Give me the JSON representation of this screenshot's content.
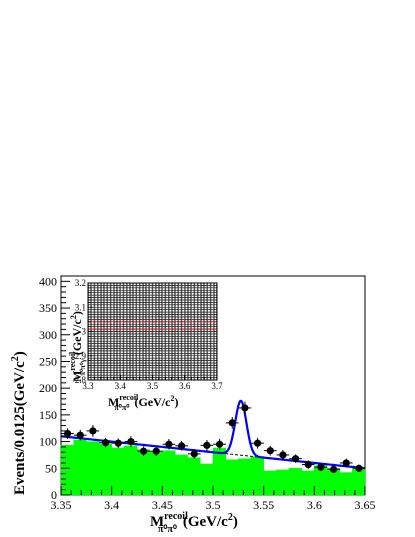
{
  "chart_data": [
    {
      "type": "scatter",
      "xlabel": "M",
      "xlabel_sup": "recoil",
      "xlabel_sub": "π⁰π⁰",
      "xlabel_unit": "(GeV/c",
      "xlabel_unit_sup": "2",
      "xlabel_unit_end": ")",
      "ylabel": "Events/0.0125(GeV/c",
      "ylabel_sup": "2",
      "ylabel_end": ")",
      "xlim": [
        3.35,
        3.65
      ],
      "ylim": [
        0,
        410
      ],
      "xticks": [
        "3.35",
        "3.4",
        "3.45",
        "3.5",
        "3.55",
        "3.6",
        "3.65"
      ],
      "yticks": [
        "0",
        "50",
        "100",
        "150",
        "200",
        "250",
        "300",
        "350",
        "400"
      ],
      "series": [
        {
          "kind": "data_points",
          "x": [
            3.3565,
            3.369,
            3.3815,
            3.394,
            3.4065,
            3.419,
            3.4315,
            3.444,
            3.4565,
            3.469,
            3.4815,
            3.494,
            3.5065,
            3.519,
            3.5315,
            3.544,
            3.5565,
            3.569,
            3.5815,
            3.594,
            3.6065,
            3.619,
            3.6315,
            3.644
          ],
          "y": [
            115,
            112,
            120,
            98,
            97,
            100,
            82,
            82,
            95,
            92,
            77,
            93,
            95,
            135,
            163,
            97,
            83,
            75,
            68,
            57,
            52,
            48,
            60,
            50
          ],
          "yerr": [
            10,
            10,
            11,
            9,
            9,
            10,
            9,
            9,
            10,
            9,
            9,
            10,
            10,
            11,
            12,
            10,
            9,
            9,
            8,
            8,
            7,
            7,
            8,
            7
          ]
        },
        {
          "kind": "sideband_histogram",
          "color": "#00ff00",
          "x": [
            3.35,
            3.3625,
            3.375,
            3.3875,
            3.4,
            3.4125,
            3.425,
            3.4375,
            3.45,
            3.4625,
            3.475,
            3.4875,
            3.5,
            3.5125,
            3.525,
            3.5375,
            3.55,
            3.5625,
            3.575,
            3.5875,
            3.6,
            3.6125,
            3.625,
            3.6375
          ],
          "values": [
            93,
            103,
            100,
            96,
            88,
            92,
            85,
            80,
            83,
            75,
            70,
            58,
            88,
            66,
            68,
            72,
            45,
            47,
            50,
            45,
            55,
            50,
            42,
            48
          ]
        },
        {
          "kind": "total_fit",
          "color": "#0000ff",
          "background": {
            "a": 110,
            "b": -200
          },
          "peak": {
            "mean": 3.5275,
            "sigma": 0.0055,
            "amplitude": 102
          }
        },
        {
          "kind": "background_fit",
          "style": "dashed",
          "color": "#000000",
          "background": {
            "a": 110,
            "b": -200
          }
        }
      ]
    },
    {
      "type": "scatter",
      "role": "inset",
      "xlabel": "M",
      "xlabel_sup": "recoil",
      "xlabel_sub": "π⁰π⁰",
      "xlabel_unit": "(GeV/c",
      "xlabel_unit_sup": "2",
      "xlabel_unit_end": ")",
      "ylabel": "M",
      "ylabel_sup": "recoil",
      "ylabel_sub": "π⁰π⁰γ",
      "ylabel_unit": "(GeV/c",
      "ylabel_unit_sup": "2",
      "ylabel_unit_end": ")",
      "xlim": [
        3.3,
        3.7
      ],
      "ylim": [
        2.8,
        3.2
      ],
      "xticks": [
        "3.3",
        "3.4",
        "3.5",
        "3.6",
        "3.7"
      ],
      "yticks": [
        "2.8",
        "2.9",
        "3",
        "3.1",
        "3.2"
      ],
      "signal_band": [
        3.01,
        3.04
      ],
      "band_line_color": "#ff0000",
      "marker": "open-square",
      "grid_spacing": 0.01
    }
  ]
}
